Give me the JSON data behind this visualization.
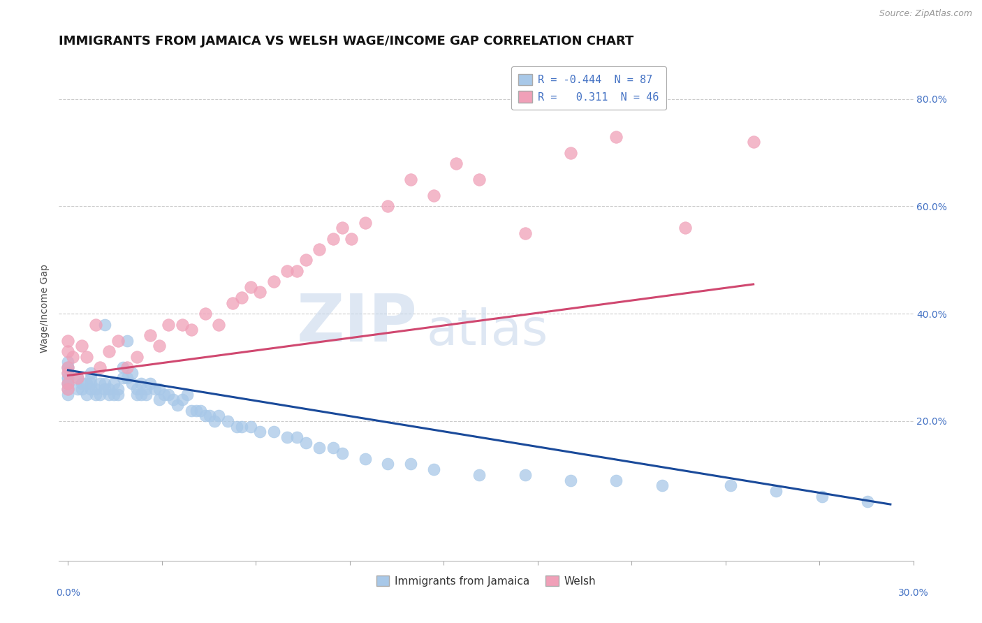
{
  "title": "IMMIGRANTS FROM JAMAICA VS WELSH WAGE/INCOME GAP CORRELATION CHART",
  "source": "Source: ZipAtlas.com",
  "ylabel": "Wage/Income Gap",
  "legend_line1": "R = -0.444  N = 87",
  "legend_line2": "R =   0.311  N = 46",
  "blue_color": "#a8c8e8",
  "pink_color": "#f0a0b8",
  "blue_line_color": "#1a4a9a",
  "pink_line_color": "#d04870",
  "watermark_color": "#c8d8ec",
  "watermark": "ZIPatlas",
  "blue_scatter_x": [
    0.0,
    0.0,
    0.0,
    0.0,
    0.0,
    0.0,
    0.0,
    0.0,
    0.0,
    0.0,
    0.02,
    0.02,
    0.03,
    0.03,
    0.04,
    0.04,
    0.05,
    0.05,
    0.05,
    0.05,
    0.06,
    0.06,
    0.07,
    0.07,
    0.08,
    0.08,
    0.08,
    0.09,
    0.09,
    0.1,
    0.1,
    0.11,
    0.11,
    0.12,
    0.12,
    0.13,
    0.13,
    0.14,
    0.14,
    0.15,
    0.15,
    0.16,
    0.16,
    0.17,
    0.17,
    0.18,
    0.19,
    0.2,
    0.2,
    0.21,
    0.22,
    0.23,
    0.24,
    0.25,
    0.26,
    0.27,
    0.28,
    0.29,
    0.3,
    0.31,
    0.32,
    0.33,
    0.35,
    0.37,
    0.38,
    0.4,
    0.42,
    0.45,
    0.48,
    0.5,
    0.52,
    0.55,
    0.58,
    0.6,
    0.65,
    0.7,
    0.75,
    0.8,
    0.9,
    1.0,
    1.1,
    1.2,
    1.3,
    1.45,
    1.55,
    1.65,
    1.75
  ],
  "blue_scatter_y": [
    0.28,
    0.3,
    0.31,
    0.27,
    0.26,
    0.29,
    0.25,
    0.3,
    0.28,
    0.27,
    0.26,
    0.28,
    0.27,
    0.26,
    0.27,
    0.25,
    0.29,
    0.28,
    0.27,
    0.26,
    0.26,
    0.25,
    0.27,
    0.25,
    0.38,
    0.27,
    0.26,
    0.26,
    0.25,
    0.27,
    0.25,
    0.26,
    0.25,
    0.3,
    0.28,
    0.35,
    0.28,
    0.29,
    0.27,
    0.26,
    0.25,
    0.27,
    0.25,
    0.26,
    0.25,
    0.27,
    0.26,
    0.26,
    0.24,
    0.25,
    0.25,
    0.24,
    0.23,
    0.24,
    0.25,
    0.22,
    0.22,
    0.22,
    0.21,
    0.21,
    0.2,
    0.21,
    0.2,
    0.19,
    0.19,
    0.19,
    0.18,
    0.18,
    0.17,
    0.17,
    0.16,
    0.15,
    0.15,
    0.14,
    0.13,
    0.12,
    0.12,
    0.11,
    0.1,
    0.1,
    0.09,
    0.09,
    0.08,
    0.08,
    0.07,
    0.06,
    0.05
  ],
  "pink_scatter_x": [
    0.0,
    0.0,
    0.0,
    0.0,
    0.0,
    0.0,
    0.01,
    0.02,
    0.03,
    0.04,
    0.06,
    0.07,
    0.09,
    0.11,
    0.13,
    0.15,
    0.18,
    0.2,
    0.22,
    0.25,
    0.27,
    0.3,
    0.33,
    0.36,
    0.38,
    0.4,
    0.42,
    0.45,
    0.48,
    0.5,
    0.52,
    0.55,
    0.58,
    0.6,
    0.62,
    0.65,
    0.7,
    0.75,
    0.8,
    0.85,
    0.9,
    1.0,
    1.1,
    1.2,
    1.35,
    1.5
  ],
  "pink_scatter_y": [
    0.3,
    0.27,
    0.35,
    0.33,
    0.29,
    0.26,
    0.32,
    0.28,
    0.34,
    0.32,
    0.38,
    0.3,
    0.33,
    0.35,
    0.3,
    0.32,
    0.36,
    0.34,
    0.38,
    0.38,
    0.37,
    0.4,
    0.38,
    0.42,
    0.43,
    0.45,
    0.44,
    0.46,
    0.48,
    0.48,
    0.5,
    0.52,
    0.54,
    0.56,
    0.54,
    0.57,
    0.6,
    0.65,
    0.62,
    0.68,
    0.65,
    0.55,
    0.7,
    0.73,
    0.56,
    0.72
  ],
  "blue_trend_x": [
    0.0,
    1.8
  ],
  "blue_trend_y": [
    0.295,
    0.045
  ],
  "pink_trend_x": [
    0.0,
    1.5
  ],
  "pink_trend_y": [
    0.285,
    0.455
  ],
  "xlim": [
    -0.02,
    1.85
  ],
  "ylim": [
    -0.06,
    0.88
  ],
  "yticks": [
    0.2,
    0.4,
    0.6,
    0.8
  ],
  "ytick_labels": [
    "20.0%",
    "40.0%",
    "60.0%",
    "80.0%"
  ],
  "background_color": "#ffffff",
  "grid_color": "#cccccc",
  "title_fontsize": 13,
  "tick_fontsize": 10,
  "ylabel_fontsize": 10
}
